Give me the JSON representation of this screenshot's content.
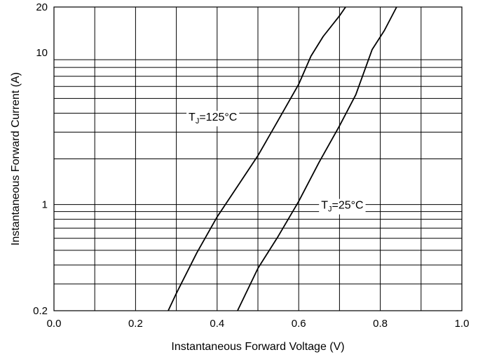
{
  "chart_data": {
    "type": "line",
    "title": "",
    "xlabel": "Instantaneous Forward Voltage (V)",
    "ylabel": "Instantaneous Forward Current (A)",
    "xlim": [
      0.0,
      1.0
    ],
    "ylim": [
      0.2,
      20
    ],
    "yscale": "log",
    "grid": true,
    "x_ticks": [
      "0.0",
      "0.2",
      "0.4",
      "0.6",
      "0.8",
      "1.0"
    ],
    "y_ticks": [
      {
        "value": 0.2,
        "label": "0.2"
      },
      {
        "value": 1,
        "label": "1"
      },
      {
        "value": 10,
        "label": "10"
      },
      {
        "value": 20,
        "label": "20"
      }
    ],
    "series": [
      {
        "points": [
          [
            0.28,
            0.2
          ],
          [
            0.3,
            0.26
          ],
          [
            0.35,
            0.48
          ],
          [
            0.4,
            0.83
          ],
          [
            0.45,
            1.32
          ],
          [
            0.5,
            2.1
          ],
          [
            0.55,
            3.6
          ],
          [
            0.6,
            6.2
          ],
          [
            0.63,
            9.5
          ],
          [
            0.66,
            12.8
          ],
          [
            0.7,
            17.5
          ],
          [
            0.715,
            20
          ]
        ]
      },
      {
        "points": [
          [
            0.45,
            0.2
          ],
          [
            0.5,
            0.38
          ],
          [
            0.55,
            0.62
          ],
          [
            0.6,
            1.05
          ],
          [
            0.65,
            1.9
          ],
          [
            0.7,
            3.3
          ],
          [
            0.74,
            5.3
          ],
          [
            0.78,
            10.5
          ],
          [
            0.81,
            14.0
          ],
          [
            0.84,
            20
          ]
        ]
      }
    ],
    "annotations": [
      {
        "label_main": "T",
        "label_sub": "J",
        "label_rest": "=125°C",
        "x": 0.33,
        "y": 3.8
      },
      {
        "label_main": "T",
        "label_sub": "J",
        "label_rest": "=25°C",
        "x": 0.655,
        "y": 1.0
      }
    ]
  }
}
